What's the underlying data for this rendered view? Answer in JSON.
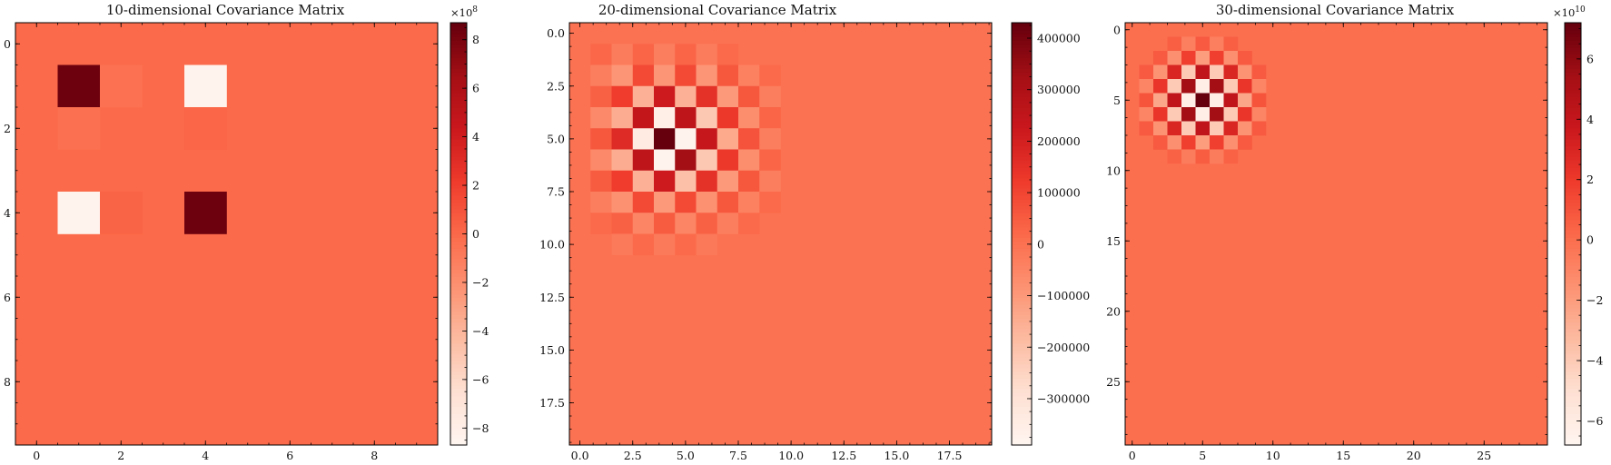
{
  "chart_data": [
    {
      "type": "heatmap",
      "title": "10-dimensional Covariance Matrix",
      "size": 10,
      "xlim": [
        -0.5,
        9.5
      ],
      "ylim": [
        9.5,
        -0.5
      ],
      "x_ticks": [
        0,
        2,
        4,
        6,
        8
      ],
      "x_tick_labels": [
        "0",
        "2",
        "4",
        "6",
        "8"
      ],
      "y_ticks": [
        0,
        2,
        4,
        6,
        8
      ],
      "y_tick_labels": [
        "0",
        "2",
        "4",
        "6",
        "8"
      ],
      "colormap": "Reds",
      "colormap_stops": [
        "#fff5f0",
        "#fee0d2",
        "#fcbba1",
        "#fc9272",
        "#fb6a4a",
        "#ef3b2c",
        "#cb181d",
        "#a50f15",
        "#67000d"
      ],
      "vmin": -870000000,
      "vmax": 870000000,
      "background_value": 0,
      "cells": [
        {
          "row": 1,
          "col": 1,
          "value": 850000000
        },
        {
          "row": 1,
          "col": 2,
          "value": -40000000
        },
        {
          "row": 1,
          "col": 4,
          "value": -850000000
        },
        {
          "row": 2,
          "col": 1,
          "value": -30000000
        },
        {
          "row": 2,
          "col": 4,
          "value": 20000000
        },
        {
          "row": 4,
          "col": 1,
          "value": -850000000
        },
        {
          "row": 4,
          "col": 2,
          "value": 30000000
        },
        {
          "row": 4,
          "col": 4,
          "value": 850000000
        }
      ],
      "colorbar": {
        "ticks": [
          -8,
          -6,
          -4,
          -2,
          0,
          2,
          4,
          6,
          8
        ],
        "tick_labels": [
          "−8",
          "−6",
          "−4",
          "−2",
          "0",
          "2",
          "4",
          "6",
          "8"
        ],
        "tick_scale": 100000000,
        "offset_text": "×10",
        "offset_exp": "8"
      }
    },
    {
      "type": "heatmap",
      "title": "20-dimensional Covariance Matrix",
      "size": 20,
      "xlim": [
        -0.5,
        19.5
      ],
      "ylim": [
        19.5,
        -0.5
      ],
      "x_ticks": [
        0,
        2.5,
        5,
        7.5,
        10,
        12.5,
        15,
        17.5
      ],
      "x_tick_labels": [
        "0.0",
        "2.5",
        "5.0",
        "7.5",
        "10.0",
        "12.5",
        "15.0",
        "17.5"
      ],
      "y_ticks": [
        0,
        2.5,
        5,
        7.5,
        10,
        12.5,
        15,
        17.5
      ],
      "y_tick_labels": [
        "0.0",
        "2.5",
        "5.0",
        "7.5",
        "10.0",
        "12.5",
        "15.0",
        "17.5"
      ],
      "colormap": "Reds",
      "colormap_stops": [
        "#fff5f0",
        "#fee0d2",
        "#fcbba1",
        "#fc9272",
        "#fb6a4a",
        "#ef3b2c",
        "#cb181d",
        "#a50f15",
        "#67000d"
      ],
      "vmin": -390000,
      "vmax": 430000,
      "background_value": 0,
      "cells": [
        {
          "row": 1,
          "col": 1,
          "value": 25000
        },
        {
          "row": 1,
          "col": 2,
          "value": -25000
        },
        {
          "row": 1,
          "col": 3,
          "value": 30000
        },
        {
          "row": 1,
          "col": 4,
          "value": -30000
        },
        {
          "row": 1,
          "col": 5,
          "value": 30000
        },
        {
          "row": 1,
          "col": 6,
          "value": -25000
        },
        {
          "row": 1,
          "col": 7,
          "value": 20000
        },
        {
          "row": 2,
          "col": 1,
          "value": -30000
        },
        {
          "row": 2,
          "col": 2,
          "value": -90000
        },
        {
          "row": 2,
          "col": 3,
          "value": 90000
        },
        {
          "row": 2,
          "col": 4,
          "value": -90000
        },
        {
          "row": 2,
          "col": 5,
          "value": 90000
        },
        {
          "row": 2,
          "col": 6,
          "value": -90000
        },
        {
          "row": 2,
          "col": 7,
          "value": 60000
        },
        {
          "row": 2,
          "col": 8,
          "value": -40000
        },
        {
          "row": 2,
          "col": 9,
          "value": 20000
        },
        {
          "row": 3,
          "col": 1,
          "value": 40000
        },
        {
          "row": 3,
          "col": 2,
          "value": 120000
        },
        {
          "row": 3,
          "col": 3,
          "value": -160000
        },
        {
          "row": 3,
          "col": 4,
          "value": 220000
        },
        {
          "row": 3,
          "col": 5,
          "value": -160000
        },
        {
          "row": 3,
          "col": 6,
          "value": 150000
        },
        {
          "row": 3,
          "col": 7,
          "value": -100000
        },
        {
          "row": 3,
          "col": 8,
          "value": 60000
        },
        {
          "row": 3,
          "col": 9,
          "value": -30000
        },
        {
          "row": 4,
          "col": 1,
          "value": -60000
        },
        {
          "row": 4,
          "col": 2,
          "value": -150000
        },
        {
          "row": 4,
          "col": 3,
          "value": 250000
        },
        {
          "row": 4,
          "col": 4,
          "value": -360000
        },
        {
          "row": 4,
          "col": 5,
          "value": 260000
        },
        {
          "row": 4,
          "col": 6,
          "value": -220000
        },
        {
          "row": 4,
          "col": 7,
          "value": 130000
        },
        {
          "row": 4,
          "col": 8,
          "value": -70000
        },
        {
          "row": 4,
          "col": 9,
          "value": 30000
        },
        {
          "row": 5,
          "col": 1,
          "value": 60000
        },
        {
          "row": 5,
          "col": 2,
          "value": 170000
        },
        {
          "row": 5,
          "col": 3,
          "value": -340000
        },
        {
          "row": 5,
          "col": 4,
          "value": 430000
        },
        {
          "row": 5,
          "col": 5,
          "value": -380000
        },
        {
          "row": 5,
          "col": 6,
          "value": 240000
        },
        {
          "row": 5,
          "col": 7,
          "value": -140000
        },
        {
          "row": 5,
          "col": 8,
          "value": 70000
        },
        {
          "row": 5,
          "col": 9,
          "value": -30000
        },
        {
          "row": 6,
          "col": 1,
          "value": -60000
        },
        {
          "row": 6,
          "col": 2,
          "value": -150000
        },
        {
          "row": 6,
          "col": 3,
          "value": 260000
        },
        {
          "row": 6,
          "col": 4,
          "value": -380000
        },
        {
          "row": 6,
          "col": 5,
          "value": 330000
        },
        {
          "row": 6,
          "col": 6,
          "value": -220000
        },
        {
          "row": 6,
          "col": 7,
          "value": 130000
        },
        {
          "row": 6,
          "col": 8,
          "value": -70000
        },
        {
          "row": 6,
          "col": 9,
          "value": 30000
        },
        {
          "row": 7,
          "col": 1,
          "value": 50000
        },
        {
          "row": 7,
          "col": 2,
          "value": 120000
        },
        {
          "row": 7,
          "col": 3,
          "value": -160000
        },
        {
          "row": 7,
          "col": 4,
          "value": 220000
        },
        {
          "row": 7,
          "col": 5,
          "value": -200000
        },
        {
          "row": 7,
          "col": 6,
          "value": 150000
        },
        {
          "row": 7,
          "col": 7,
          "value": -100000
        },
        {
          "row": 7,
          "col": 8,
          "value": 60000
        },
        {
          "row": 7,
          "col": 9,
          "value": -30000
        },
        {
          "row": 8,
          "col": 1,
          "value": -30000
        },
        {
          "row": 8,
          "col": 2,
          "value": -80000
        },
        {
          "row": 8,
          "col": 3,
          "value": 90000
        },
        {
          "row": 8,
          "col": 4,
          "value": -100000
        },
        {
          "row": 8,
          "col": 5,
          "value": 90000
        },
        {
          "row": 8,
          "col": 6,
          "value": -80000
        },
        {
          "row": 8,
          "col": 7,
          "value": 60000
        },
        {
          "row": 8,
          "col": 8,
          "value": -40000
        },
        {
          "row": 8,
          "col": 9,
          "value": 20000
        },
        {
          "row": 9,
          "col": 1,
          "value": 20000
        },
        {
          "row": 9,
          "col": 2,
          "value": 40000
        },
        {
          "row": 9,
          "col": 3,
          "value": -50000
        },
        {
          "row": 9,
          "col": 4,
          "value": 50000
        },
        {
          "row": 9,
          "col": 5,
          "value": -50000
        },
        {
          "row": 9,
          "col": 6,
          "value": 40000
        },
        {
          "row": 9,
          "col": 7,
          "value": -30000
        },
        {
          "row": 9,
          "col": 8,
          "value": 20000
        },
        {
          "row": 10,
          "col": 2,
          "value": -20000
        },
        {
          "row": 10,
          "col": 3,
          "value": 20000
        },
        {
          "row": 10,
          "col": 4,
          "value": -20000
        },
        {
          "row": 10,
          "col": 5,
          "value": 20000
        },
        {
          "row": 10,
          "col": 6,
          "value": -15000
        }
      ],
      "colorbar": {
        "ticks": [
          -300000,
          -200000,
          -100000,
          0,
          100000,
          200000,
          300000,
          400000
        ],
        "tick_labels": [
          "−300000",
          "−200000",
          "−100000",
          "0",
          "100000",
          "200000",
          "300000",
          "400000"
        ],
        "tick_scale": 1,
        "offset_text": "",
        "offset_exp": ""
      }
    },
    {
      "type": "heatmap",
      "title": "30-dimensional Covariance Matrix",
      "size": 30,
      "xlim": [
        -0.5,
        29.5
      ],
      "ylim": [
        29.5,
        -0.5
      ],
      "x_ticks": [
        0,
        5,
        10,
        15,
        20,
        25
      ],
      "x_tick_labels": [
        "0",
        "5",
        "10",
        "15",
        "20",
        "25"
      ],
      "y_ticks": [
        0,
        5,
        10,
        15,
        20,
        25
      ],
      "y_tick_labels": [
        "0",
        "5",
        "10",
        "15",
        "20",
        "25"
      ],
      "colormap": "Reds",
      "colormap_stops": [
        "#fff5f0",
        "#fee0d2",
        "#fcbba1",
        "#fc9272",
        "#fb6a4a",
        "#ef3b2c",
        "#cb181d",
        "#a50f15",
        "#67000d"
      ],
      "vmin": -68000000000,
      "vmax": 72000000000,
      "background_value": 0,
      "cells": [
        {
          "row": 1,
          "col": 3,
          "value": 6000000000
        },
        {
          "row": 1,
          "col": 4,
          "value": -7000000000
        },
        {
          "row": 1,
          "col": 5,
          "value": 8000000000
        },
        {
          "row": 1,
          "col": 6,
          "value": -7000000000
        },
        {
          "row": 1,
          "col": 7,
          "value": 6000000000
        },
        {
          "row": 2,
          "col": 2,
          "value": 8000000000
        },
        {
          "row": 2,
          "col": 3,
          "value": -14000000000
        },
        {
          "row": 2,
          "col": 4,
          "value": 18000000000
        },
        {
          "row": 2,
          "col": 5,
          "value": -20000000000
        },
        {
          "row": 2,
          "col": 6,
          "value": 18000000000
        },
        {
          "row": 2,
          "col": 7,
          "value": -14000000000
        },
        {
          "row": 2,
          "col": 8,
          "value": 8000000000
        },
        {
          "row": 3,
          "col": 1,
          "value": 8000000000
        },
        {
          "row": 3,
          "col": 2,
          "value": -16000000000
        },
        {
          "row": 3,
          "col": 3,
          "value": 30000000000
        },
        {
          "row": 3,
          "col": 4,
          "value": -40000000000
        },
        {
          "row": 3,
          "col": 5,
          "value": 42000000000
        },
        {
          "row": 3,
          "col": 6,
          "value": -40000000000
        },
        {
          "row": 3,
          "col": 7,
          "value": 30000000000
        },
        {
          "row": 3,
          "col": 8,
          "value": -16000000000
        },
        {
          "row": 3,
          "col": 9,
          "value": 8000000000
        },
        {
          "row": 4,
          "col": 1,
          "value": -10000000000
        },
        {
          "row": 4,
          "col": 2,
          "value": 22000000000
        },
        {
          "row": 4,
          "col": 3,
          "value": -40000000000
        },
        {
          "row": 4,
          "col": 4,
          "value": 55000000000
        },
        {
          "row": 4,
          "col": 5,
          "value": -62000000000
        },
        {
          "row": 4,
          "col": 6,
          "value": 55000000000
        },
        {
          "row": 4,
          "col": 7,
          "value": -40000000000
        },
        {
          "row": 4,
          "col": 8,
          "value": 22000000000
        },
        {
          "row": 4,
          "col": 9,
          "value": -10000000000
        },
        {
          "row": 5,
          "col": 1,
          "value": 10000000000
        },
        {
          "row": 5,
          "col": 2,
          "value": -24000000000
        },
        {
          "row": 5,
          "col": 3,
          "value": 42000000000
        },
        {
          "row": 5,
          "col": 4,
          "value": -62000000000
        },
        {
          "row": 5,
          "col": 5,
          "value": 72000000000
        },
        {
          "row": 5,
          "col": 6,
          "value": -62000000000
        },
        {
          "row": 5,
          "col": 7,
          "value": 42000000000
        },
        {
          "row": 5,
          "col": 8,
          "value": -24000000000
        },
        {
          "row": 5,
          "col": 9,
          "value": 10000000000
        },
        {
          "row": 6,
          "col": 1,
          "value": -10000000000
        },
        {
          "row": 6,
          "col": 2,
          "value": 22000000000
        },
        {
          "row": 6,
          "col": 3,
          "value": -40000000000
        },
        {
          "row": 6,
          "col": 4,
          "value": 55000000000
        },
        {
          "row": 6,
          "col": 5,
          "value": -62000000000
        },
        {
          "row": 6,
          "col": 6,
          "value": 55000000000
        },
        {
          "row": 6,
          "col": 7,
          "value": -40000000000
        },
        {
          "row": 6,
          "col": 8,
          "value": 22000000000
        },
        {
          "row": 6,
          "col": 9,
          "value": -10000000000
        },
        {
          "row": 7,
          "col": 1,
          "value": 8000000000
        },
        {
          "row": 7,
          "col": 2,
          "value": -16000000000
        },
        {
          "row": 7,
          "col": 3,
          "value": 30000000000
        },
        {
          "row": 7,
          "col": 4,
          "value": -40000000000
        },
        {
          "row": 7,
          "col": 5,
          "value": 42000000000
        },
        {
          "row": 7,
          "col": 6,
          "value": -40000000000
        },
        {
          "row": 7,
          "col": 7,
          "value": 30000000000
        },
        {
          "row": 7,
          "col": 8,
          "value": -16000000000
        },
        {
          "row": 7,
          "col": 9,
          "value": 8000000000
        },
        {
          "row": 8,
          "col": 2,
          "value": 8000000000
        },
        {
          "row": 8,
          "col": 3,
          "value": -14000000000
        },
        {
          "row": 8,
          "col": 4,
          "value": 18000000000
        },
        {
          "row": 8,
          "col": 5,
          "value": -20000000000
        },
        {
          "row": 8,
          "col": 6,
          "value": 18000000000
        },
        {
          "row": 8,
          "col": 7,
          "value": -14000000000
        },
        {
          "row": 8,
          "col": 8,
          "value": 8000000000
        },
        {
          "row": 9,
          "col": 3,
          "value": 5000000000
        },
        {
          "row": 9,
          "col": 4,
          "value": -6000000000
        },
        {
          "row": 9,
          "col": 5,
          "value": 7000000000
        },
        {
          "row": 9,
          "col": 6,
          "value": -6000000000
        },
        {
          "row": 9,
          "col": 7,
          "value": 5000000000
        }
      ],
      "colorbar": {
        "ticks": [
          -6,
          -4,
          -2,
          0,
          2,
          4,
          6
        ],
        "tick_labels": [
          "−6",
          "−4",
          "−2",
          "0",
          "2",
          "4",
          "6"
        ],
        "tick_scale": 10000000000,
        "offset_text": "×10",
        "offset_exp": "10"
      }
    }
  ]
}
